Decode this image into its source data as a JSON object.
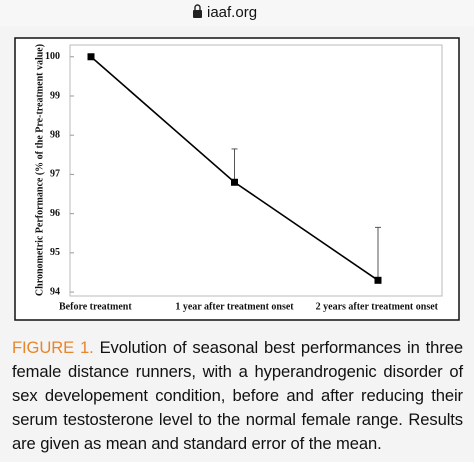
{
  "url": "iaaf.org",
  "chart_data": {
    "type": "line",
    "ylabel": "Chronometric Performance (% of the Pre-treatment value)",
    "categories": [
      "Before treatment",
      "1 year after treatment onset",
      "2 years after treatment onset"
    ],
    "series": [
      {
        "name": "Performance",
        "color": "#000000",
        "values": [
          100,
          96.8,
          94.3
        ],
        "errors": [
          null,
          0.85,
          1.35
        ]
      }
    ],
    "ylim": [
      93.9,
      100.3
    ],
    "yticks": [
      94,
      95,
      96,
      97,
      98,
      99,
      100
    ]
  },
  "caption": {
    "label": "FIGURE 1.",
    "text": "Evolution of seasonal best performances in three female distance runners, with a hyperandrogenic disorder of sex developement condition, before and after reducing their serum testosterone level to the normal female range. Results are given as mean and standard error of the mean."
  }
}
